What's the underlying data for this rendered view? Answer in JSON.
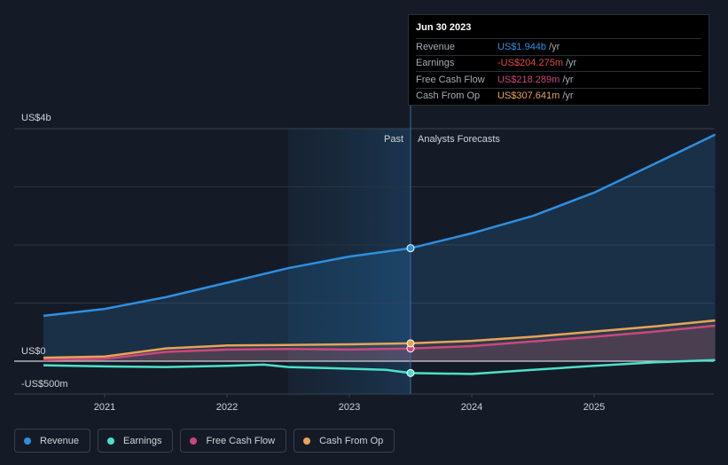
{
  "chart_data": {
    "type": "area",
    "y_axis_labels": [
      "US$4b",
      "US$0",
      "-US$500m"
    ],
    "ylim": [
      -500,
      4000
    ],
    "x_ticks": [
      2021,
      2022,
      2023,
      2024,
      2025
    ],
    "divider_labels": {
      "past": "Past",
      "forecast": "Analysts Forecasts"
    },
    "series": [
      {
        "name": "Revenue",
        "color": "#2f8fe0",
        "points": [
          [
            2020.5,
            780
          ],
          [
            2021.0,
            900
          ],
          [
            2021.5,
            1100
          ],
          [
            2022.0,
            1350
          ],
          [
            2022.5,
            1600
          ],
          [
            2023.0,
            1800
          ],
          [
            2023.5,
            1944
          ],
          [
            2024.0,
            2200
          ],
          [
            2024.5,
            2500
          ],
          [
            2025.0,
            2900
          ],
          [
            2025.5,
            3400
          ],
          [
            2025.99,
            3900
          ]
        ]
      },
      {
        "name": "Earnings",
        "color": "#4de0c8",
        "points": [
          [
            2020.5,
            -70
          ],
          [
            2021.0,
            -90
          ],
          [
            2021.5,
            -100
          ],
          [
            2022.0,
            -80
          ],
          [
            2022.3,
            -60
          ],
          [
            2022.5,
            -100
          ],
          [
            2023.0,
            -130
          ],
          [
            2023.3,
            -150
          ],
          [
            2023.5,
            -204
          ],
          [
            2024.0,
            -220
          ],
          [
            2024.5,
            -150
          ],
          [
            2025.0,
            -80
          ],
          [
            2025.5,
            -20
          ],
          [
            2025.99,
            20
          ]
        ]
      },
      {
        "name": "Free Cash Flow",
        "color": "#c9487e",
        "points": [
          [
            2020.5,
            20
          ],
          [
            2021.0,
            40
          ],
          [
            2021.5,
            160
          ],
          [
            2022.0,
            200
          ],
          [
            2022.5,
            210
          ],
          [
            2023.0,
            200
          ],
          [
            2023.5,
            218
          ],
          [
            2024.0,
            260
          ],
          [
            2024.5,
            340
          ],
          [
            2025.0,
            420
          ],
          [
            2025.5,
            510
          ],
          [
            2025.99,
            610
          ]
        ]
      },
      {
        "name": "Cash From Op",
        "color": "#e8a456",
        "points": [
          [
            2020.5,
            60
          ],
          [
            2021.0,
            80
          ],
          [
            2021.5,
            220
          ],
          [
            2022.0,
            270
          ],
          [
            2022.5,
            280
          ],
          [
            2023.0,
            290
          ],
          [
            2023.5,
            307
          ],
          [
            2024.0,
            350
          ],
          [
            2024.5,
            420
          ],
          [
            2025.0,
            510
          ],
          [
            2025.5,
            600
          ],
          [
            2025.99,
            700
          ]
        ]
      }
    ]
  },
  "tooltip": {
    "date": "Jun 30 2023",
    "rows": [
      {
        "label": "Revenue",
        "value": "US$1.944b",
        "unit": "/yr",
        "color": "#2f8fe0"
      },
      {
        "label": "Earnings",
        "value": "-US$204.275m",
        "unit": "/yr",
        "color": "#e24a4a"
      },
      {
        "label": "Free Cash Flow",
        "value": "US$218.289m",
        "unit": "/yr",
        "color": "#c9487e"
      },
      {
        "label": "Cash From Op",
        "value": "US$307.641m",
        "unit": "/yr",
        "color": "#e8a456"
      }
    ]
  },
  "legend": [
    {
      "label": "Revenue",
      "color": "#2f8fe0"
    },
    {
      "label": "Earnings",
      "color": "#4de0c8"
    },
    {
      "label": "Free Cash Flow",
      "color": "#c9487e"
    },
    {
      "label": "Cash From Op",
      "color": "#e8a456"
    }
  ]
}
